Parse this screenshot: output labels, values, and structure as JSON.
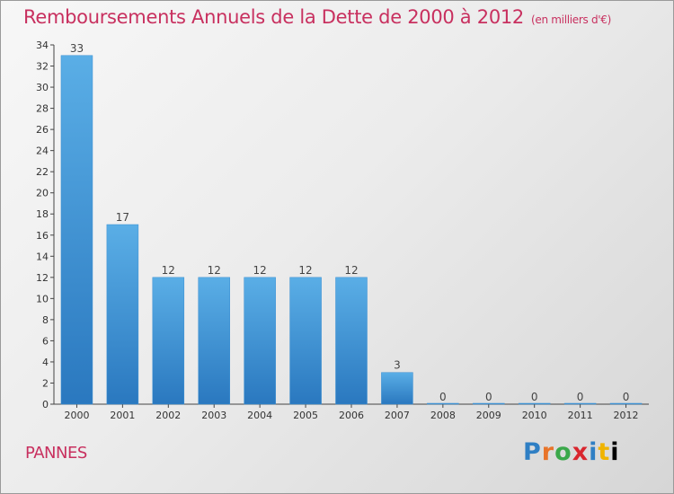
{
  "header": {
    "title": "Remboursements Annuels de la Dette de 2000 à 2012",
    "unit": "(en milliers d'€)"
  },
  "footer": {
    "commune": "PANNES",
    "logo_letters": [
      "P",
      "r",
      "o",
      "x",
      "i",
      "t",
      "i"
    ]
  },
  "colors": {
    "title": "#c8305f",
    "bar_light": "#5aaee6",
    "bar_dark": "#2a78bf"
  },
  "chart_data": {
    "type": "bar",
    "title": "Remboursements Annuels de la Dette de 2000 à 2012",
    "subtitle": "(en milliers d'€)",
    "categories": [
      "2000",
      "2001",
      "2002",
      "2003",
      "2004",
      "2005",
      "2006",
      "2007",
      "2008",
      "2009",
      "2010",
      "2011",
      "2012"
    ],
    "values": [
      33,
      17,
      12,
      12,
      12,
      12,
      12,
      3,
      0,
      0,
      0,
      0,
      0
    ],
    "data_labels": [
      "33",
      "17",
      "12",
      "12",
      "12",
      "12",
      "12",
      "3",
      "0",
      "0",
      "0",
      "0",
      "0"
    ],
    "yticks": [
      0,
      2,
      4,
      6,
      8,
      10,
      12,
      14,
      16,
      18,
      20,
      22,
      24,
      26,
      28,
      30,
      32,
      34
    ],
    "ylim": [
      0,
      34
    ],
    "xlabel": "",
    "ylabel": "",
    "grid": false
  }
}
